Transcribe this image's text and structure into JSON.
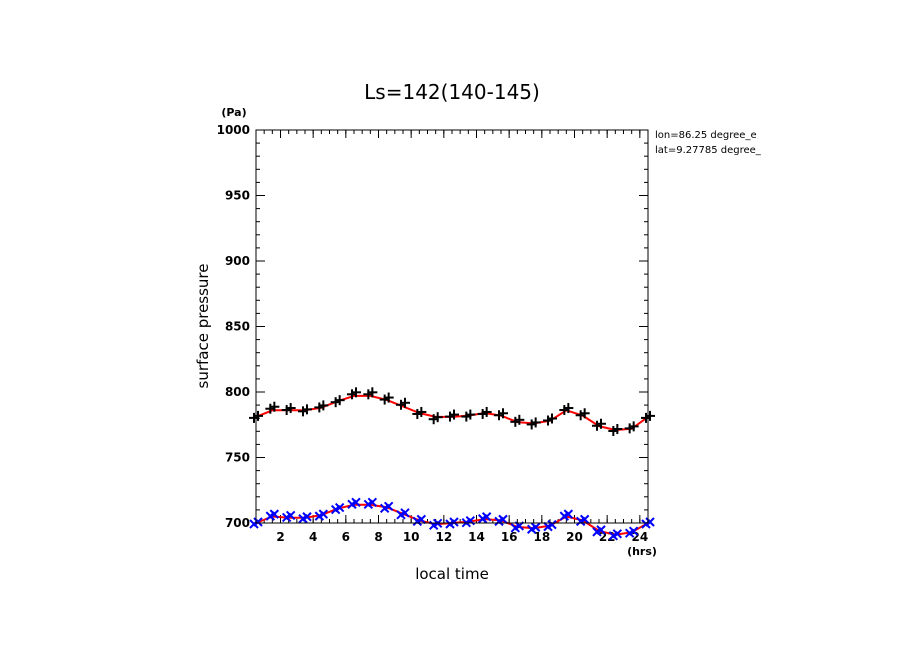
{
  "chart_data": {
    "type": "line",
    "title": "Ls=142(140-145)",
    "xlabel": "local time",
    "ylabel": "surface pressure",
    "x_unit": "(hrs)",
    "y_unit": "(Pa)",
    "annotations": [
      "lon=86.25 degree_e",
      "lat=9.27785 degree_"
    ],
    "xlim": [
      0.5,
      24.5
    ],
    "ylim": [
      700,
      1000
    ],
    "x_ticks": [
      2,
      4,
      6,
      8,
      10,
      12,
      14,
      16,
      18,
      20,
      22,
      24
    ],
    "y_ticks": [
      700,
      750,
      800,
      850,
      900,
      950,
      1000
    ],
    "x_minor_step": 0.5,
    "y_minor_step": 10,
    "hours": [
      0.5,
      1.5,
      2.5,
      3.5,
      4.5,
      5.5,
      6.5,
      7.5,
      8.5,
      9.5,
      10.5,
      11.5,
      12.5,
      13.5,
      14.5,
      15.5,
      16.5,
      17.5,
      18.5,
      19.5,
      20.5,
      21.5,
      22.5,
      23.5,
      24.5
    ],
    "series": [
      {
        "color": "#ff0000",
        "style": "line",
        "values": [
          781,
          786,
          786,
          786,
          788,
          793,
          797,
          797,
          794,
          789,
          784,
          781,
          781,
          782,
          784,
          782,
          777,
          776,
          778,
          786,
          782,
          774,
          771,
          772,
          781
        ]
      },
      {
        "color": "#000000",
        "style": "marker",
        "marker": "+",
        "values": [
          781,
          788,
          787,
          786,
          789,
          793,
          799,
          799,
          795,
          791,
          784,
          780,
          782,
          782,
          784,
          783,
          778,
          776,
          779,
          787,
          783,
          775,
          771,
          773,
          781
        ]
      },
      {
        "color": "#ff0000",
        "style": "line",
        "values": [
          700,
          705,
          704,
          704,
          706,
          711,
          714,
          714,
          712,
          707,
          702,
          699,
          700,
          701,
          703,
          702,
          697,
          696,
          698,
          705,
          702,
          694,
          691,
          693,
          700
        ]
      },
      {
        "color": "#0000ff",
        "style": "marker",
        "marker": "x",
        "values": [
          700,
          706,
          705,
          704,
          706,
          711,
          715,
          715,
          712,
          707,
          702,
          699,
          700,
          701,
          704,
          702,
          697,
          696,
          698,
          706,
          702,
          694,
          691,
          693,
          700
        ]
      }
    ]
  }
}
